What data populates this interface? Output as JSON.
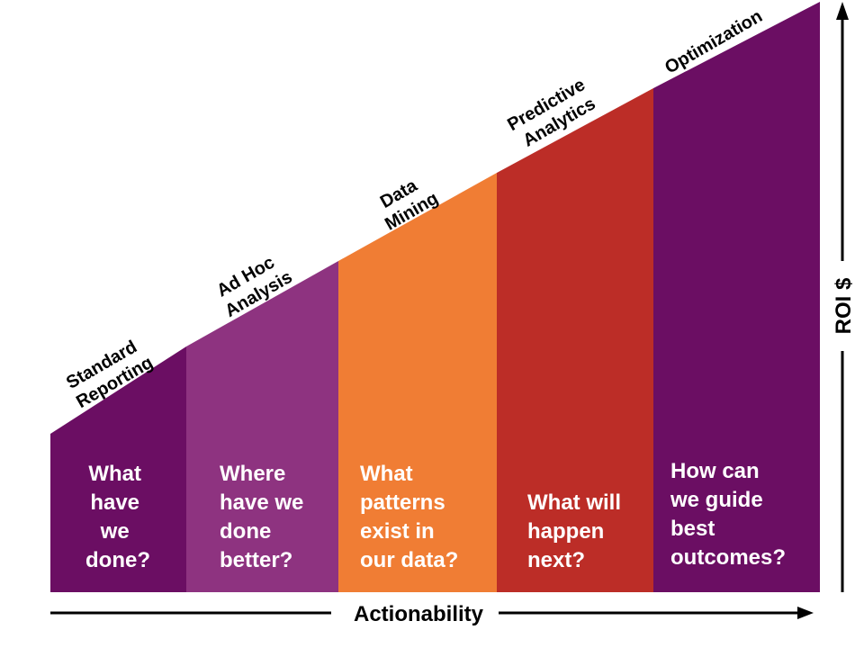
{
  "stages": [
    {
      "id": "standard-reporting",
      "label_lines": [
        "Standard",
        "Reporting"
      ],
      "question_lines": [
        "What",
        "have",
        "we",
        "done?"
      ],
      "color": "#6B0E63"
    },
    {
      "id": "ad-hoc-analysis",
      "label_lines": [
        "Ad Hoc",
        "Analysis"
      ],
      "question_lines": [
        "Where",
        "have we",
        "done",
        "better?"
      ],
      "color": "#8E3380"
    },
    {
      "id": "data-mining",
      "label_lines": [
        "Data",
        "Mining"
      ],
      "question_lines": [
        "What",
        "patterns",
        "exist in",
        "our data?"
      ],
      "color": "#F07D34"
    },
    {
      "id": "predictive-analytics",
      "label_lines": [
        "Predictive",
        "Analytics"
      ],
      "question_lines": [
        "What will",
        "happen",
        "next?"
      ],
      "color": "#BC2D27"
    },
    {
      "id": "optimization",
      "label_lines": [
        "Optimization"
      ],
      "question_lines": [
        "How can",
        "we guide",
        "best",
        "outcomes?"
      ],
      "color": "#6B0E63"
    }
  ],
  "axes": {
    "x_label": "Actionability",
    "y_label": "ROI $",
    "arrow_color": "#000000"
  }
}
